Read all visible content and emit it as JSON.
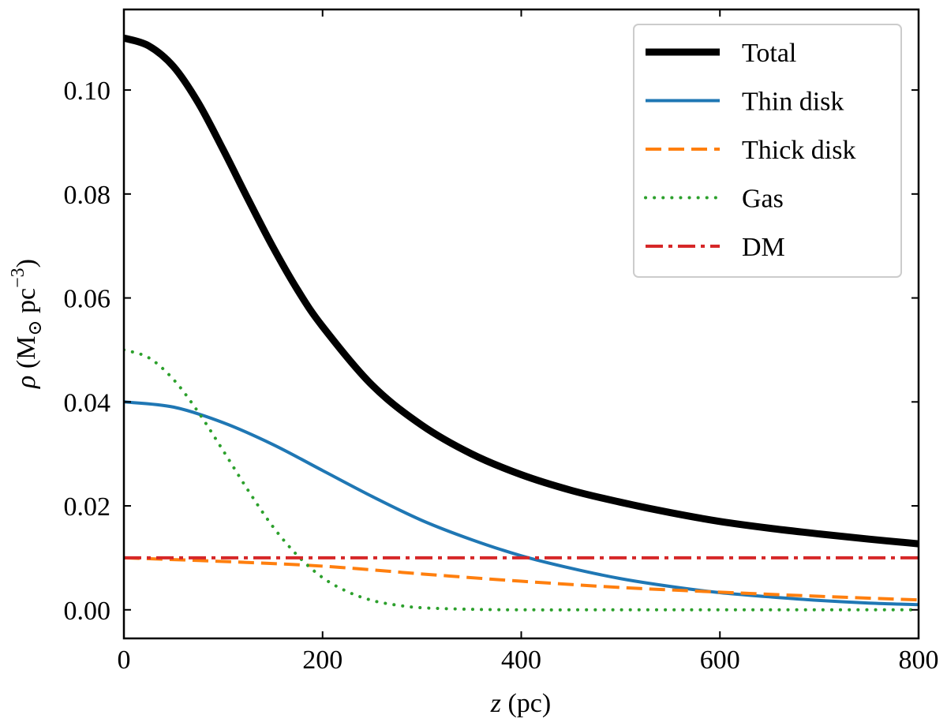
{
  "chart_data": {
    "type": "line",
    "xlabel": {
      "var": "z",
      "unit": " (pc)"
    },
    "ylabel": {
      "var": "ρ",
      "unit": "M",
      "sub": "⊙",
      "unit2": " pc",
      "sup": "−3"
    },
    "xlim": [
      0,
      800
    ],
    "ylim": [
      -0.0055,
      0.1155
    ],
    "xticks": [
      0,
      200,
      400,
      600,
      800
    ],
    "xtick_labels": [
      "0",
      "200",
      "400",
      "600",
      "800"
    ],
    "yticks": [
      0.0,
      0.02,
      0.04,
      0.06,
      0.08,
      0.1
    ],
    "ytick_labels": [
      "0.00",
      "0.02",
      "0.04",
      "0.06",
      "0.08",
      "0.10"
    ],
    "grid": false,
    "legend_position": "top-right",
    "series": [
      {
        "name": "Total",
        "color": "#000000",
        "style": "solid",
        "width": 9,
        "x": [
          0,
          25,
          50,
          75,
          100,
          125,
          150,
          175,
          200,
          250,
          300,
          350,
          400,
          450,
          500,
          550,
          600,
          650,
          700,
          750,
          800
        ],
        "y": [
          0.11,
          0.1085,
          0.1045,
          0.0975,
          0.0885,
          0.079,
          0.0698,
          0.0615,
          0.0545,
          0.0432,
          0.0355,
          0.03,
          0.026,
          0.023,
          0.0207,
          0.0187,
          0.017,
          0.0157,
          0.0146,
          0.0136,
          0.0127
        ]
      },
      {
        "name": "Thin disk",
        "color": "#1f77b4",
        "style": "solid",
        "width": 4,
        "x": [
          0,
          50,
          100,
          150,
          200,
          250,
          300,
          350,
          400,
          450,
          500,
          550,
          600,
          650,
          700,
          750,
          800
        ],
        "y": [
          0.04,
          0.039,
          0.036,
          0.0318,
          0.0268,
          0.0218,
          0.0172,
          0.0135,
          0.0104,
          0.008,
          0.006,
          0.0045,
          0.0033,
          0.0025,
          0.0018,
          0.0013,
          0.001
        ]
      },
      {
        "name": "Thick disk",
        "color": "#ff7f0e",
        "style": "dashed",
        "width": 4,
        "x": [
          0,
          100,
          200,
          300,
          400,
          500,
          600,
          700,
          800
        ],
        "y": [
          0.01,
          0.0093,
          0.0084,
          0.0069,
          0.0055,
          0.0043,
          0.0034,
          0.0026,
          0.0019
        ]
      },
      {
        "name": "Gas",
        "color": "#2ca02c",
        "style": "dotted",
        "width": 4,
        "x": [
          0,
          25,
          50,
          75,
          100,
          125,
          150,
          175,
          200,
          225,
          250,
          275,
          300,
          350,
          400,
          500,
          600,
          700,
          800
        ],
        "y": [
          0.05,
          0.0485,
          0.0443,
          0.038,
          0.0306,
          0.023,
          0.016,
          0.0104,
          0.0062,
          0.0035,
          0.0018,
          0.0009,
          0.0004,
          0.0001,
          0.0,
          0.0,
          0.0,
          0.0,
          0.0
        ]
      },
      {
        "name": "DM",
        "color": "#d62728",
        "style": "dashdot",
        "width": 4,
        "x": [
          0,
          800
        ],
        "y": [
          0.01,
          0.01
        ]
      }
    ]
  }
}
